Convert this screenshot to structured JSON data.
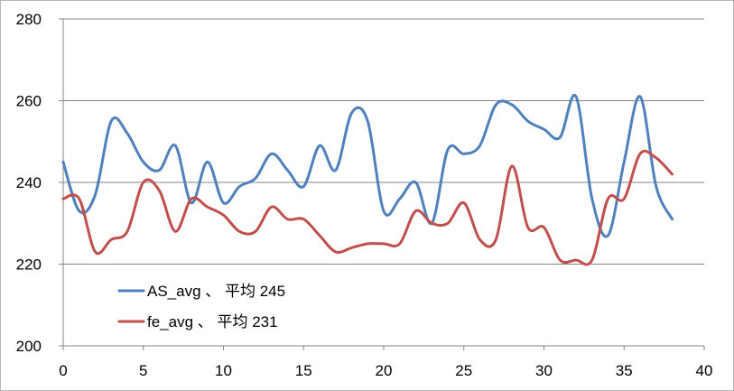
{
  "chart_data": {
    "type": "line",
    "title": "",
    "xlabel": "",
    "ylabel": "",
    "xlim": [
      0,
      40
    ],
    "ylim": [
      200,
      280
    ],
    "x_ticks": [
      "0",
      "5",
      "10",
      "15",
      "20",
      "25",
      "30",
      "35",
      "40"
    ],
    "y_ticks": [
      "200",
      "220",
      "240",
      "260",
      "280"
    ],
    "grid": "horizontal",
    "legend_position": "bottom-left inside plot",
    "x": [
      0,
      1,
      2,
      3,
      4,
      5,
      6,
      7,
      8,
      9,
      10,
      11,
      12,
      13,
      14,
      15,
      16,
      17,
      18,
      19,
      20,
      21,
      22,
      23,
      24,
      25,
      26,
      27,
      28,
      29,
      30,
      31,
      32,
      33,
      34,
      35,
      36,
      37,
      38
    ],
    "series": [
      {
        "name": "AS_avg 、 平均 245",
        "color": "#4f81bd",
        "values": [
          245,
          233,
          237,
          255,
          252,
          245,
          243,
          249,
          235,
          245,
          235,
          239,
          241,
          247,
          243,
          239,
          249,
          243,
          257,
          255,
          233,
          236,
          240,
          230,
          248,
          247,
          249,
          259,
          259,
          255,
          253,
          251,
          261,
          236,
          227,
          245,
          261,
          239,
          231
        ]
      },
      {
        "name": "fe_avg 、 平均 231",
        "color": "#c0504d",
        "values": [
          236,
          236,
          223,
          226,
          228,
          240,
          238,
          228,
          236,
          234,
          232,
          228,
          228,
          234,
          231,
          231,
          227,
          223,
          224,
          225,
          225,
          225,
          233,
          230,
          230,
          235,
          226,
          226,
          244,
          229,
          229,
          221,
          221,
          221,
          236,
          236,
          247,
          246,
          242
        ]
      }
    ]
  }
}
